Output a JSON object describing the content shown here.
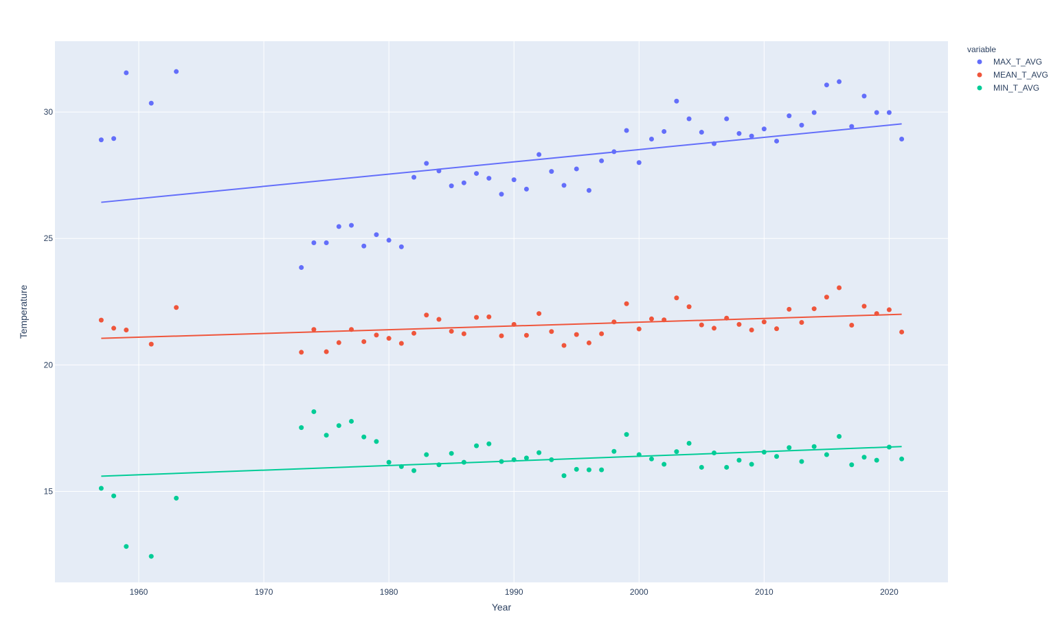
{
  "chart_data": {
    "type": "scatter",
    "title": "",
    "xlabel": "Year",
    "ylabel": "Temperature",
    "xlim": [
      1953.3,
      2024.7
    ],
    "ylim": [
      11.4,
      32.8
    ],
    "x_ticks": [
      1960,
      1970,
      1980,
      1990,
      2000,
      2010,
      2020
    ],
    "y_ticks": [
      15,
      20,
      25,
      30
    ],
    "grid": true,
    "legend": {
      "title": "variable",
      "placement": "top-right"
    },
    "background": "#e5ecf6",
    "trendlines": true,
    "years": [
      1957,
      1958,
      1959,
      1961,
      1963,
      1973,
      1974,
      1975,
      1976,
      1977,
      1978,
      1979,
      1980,
      1981,
      1982,
      1983,
      1984,
      1985,
      1986,
      1987,
      1988,
      1989,
      1990,
      1991,
      1992,
      1993,
      1994,
      1995,
      1996,
      1997,
      1998,
      1999,
      2000,
      2001,
      2002,
      2003,
      2004,
      2005,
      2006,
      2007,
      2008,
      2009,
      2010,
      2011,
      2012,
      2013,
      2014,
      2015,
      2016,
      2017,
      2018,
      2019,
      2020,
      2021
    ],
    "series": [
      {
        "name": "MAX_T_AVG",
        "color": "#636efa",
        "values": [
          28.9,
          28.95,
          31.55,
          30.35,
          31.6,
          23.85,
          24.83,
          24.83,
          25.47,
          25.52,
          24.7,
          25.15,
          24.93,
          24.67,
          27.42,
          27.97,
          27.67,
          27.08,
          27.2,
          27.57,
          27.38,
          26.75,
          27.32,
          26.95,
          28.32,
          27.65,
          27.1,
          27.75,
          26.9,
          28.07,
          28.43,
          29.27,
          28.0,
          28.93,
          29.23,
          30.43,
          29.73,
          29.2,
          28.75,
          29.73,
          29.15,
          29.05,
          29.33,
          28.85,
          29.85,
          29.48,
          29.98,
          31.07,
          31.2,
          29.43,
          30.63,
          29.98,
          29.98,
          28.93
        ],
        "trend": {
          "start": 26.43,
          "end": 29.53
        }
      },
      {
        "name": "MEAN_T_AVG",
        "color": "#ef553b",
        "values": [
          21.77,
          21.45,
          21.38,
          20.82,
          22.27,
          20.5,
          21.4,
          20.52,
          20.88,
          21.4,
          20.92,
          21.18,
          21.05,
          20.85,
          21.25,
          21.97,
          21.8,
          21.33,
          21.23,
          21.88,
          21.9,
          21.15,
          21.6,
          21.17,
          22.03,
          21.32,
          20.77,
          21.2,
          20.87,
          21.23,
          21.7,
          22.42,
          21.42,
          21.82,
          21.78,
          22.65,
          22.3,
          21.58,
          21.45,
          21.85,
          21.6,
          21.38,
          21.7,
          21.43,
          22.2,
          21.68,
          22.22,
          22.68,
          23.05,
          21.57,
          22.32,
          22.03,
          22.18,
          21.3
        ],
        "trend": {
          "start": 21.05,
          "end": 22.0
        }
      },
      {
        "name": "MIN_T_AVG",
        "color": "#00cc96",
        "values": [
          15.12,
          14.82,
          12.82,
          12.43,
          14.73,
          17.52,
          18.15,
          17.22,
          17.6,
          17.77,
          17.15,
          16.97,
          16.15,
          15.98,
          15.82,
          16.45,
          16.05,
          16.5,
          16.15,
          16.8,
          16.88,
          16.18,
          16.25,
          16.32,
          16.53,
          16.25,
          15.62,
          15.87,
          15.85,
          15.85,
          16.58,
          17.25,
          16.45,
          16.28,
          16.07,
          16.57,
          16.9,
          15.95,
          16.52,
          15.95,
          16.23,
          16.07,
          16.55,
          16.38,
          16.73,
          16.18,
          16.77,
          16.45,
          17.17,
          16.05,
          16.35,
          16.23,
          16.75,
          16.28
        ],
        "trend": {
          "start": 15.6,
          "end": 16.77
        }
      }
    ]
  }
}
